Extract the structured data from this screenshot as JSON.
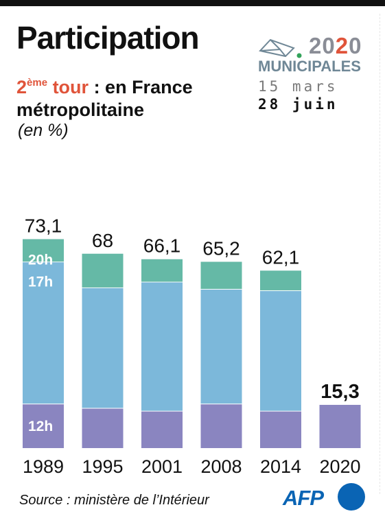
{
  "header": {
    "title": "Participation",
    "subtitle_round_num": "2",
    "subtitle_round_sup": "ème",
    "subtitle_round_word": " tour",
    "subtitle_rest": " : en France métropolitaine",
    "unit": "(en %)"
  },
  "logo": {
    "year_part1": "20",
    "year_part2": "2",
    "year_part3": "0",
    "title": "MUNICIPALES",
    "date1": "15 mars",
    "date2": "28 juin",
    "icon": "ballot-envelope-icon"
  },
  "footer": {
    "source": "Source : ministère de l’Intérieur",
    "brand": "AFP"
  },
  "colors": {
    "12h": "#8a85c0",
    "17h": "#7cb8da",
    "20h": "#65b9a6",
    "accent": "#e0543a",
    "afp": "#0a64b4"
  },
  "chart_data": {
    "type": "bar",
    "stacked": true,
    "title": "Participation",
    "subtitle": "2ème tour : en France métropolitaine",
    "unit": "(en %)",
    "categories": [
      "1989",
      "1995",
      "2001",
      "2008",
      "2014",
      "2020"
    ],
    "totals": [
      "73,1",
      "68",
      "66,1",
      "65,2",
      "62,1",
      "15,3"
    ],
    "highlight_category": "2020",
    "series": [
      {
        "name": "12h",
        "values": [
          15.5,
          14.0,
          13.0,
          15.5,
          13.0,
          15.3
        ]
      },
      {
        "name": "17h",
        "values": [
          49.5,
          42.0,
          45.0,
          40.0,
          42.0,
          0
        ]
      },
      {
        "name": "20h",
        "values": [
          8.1,
          12.0,
          8.1,
          9.7,
          7.1,
          0
        ]
      }
    ],
    "inline_labels": [
      "20h",
      "17h",
      "12h"
    ],
    "ylim": [
      0,
      80
    ]
  }
}
